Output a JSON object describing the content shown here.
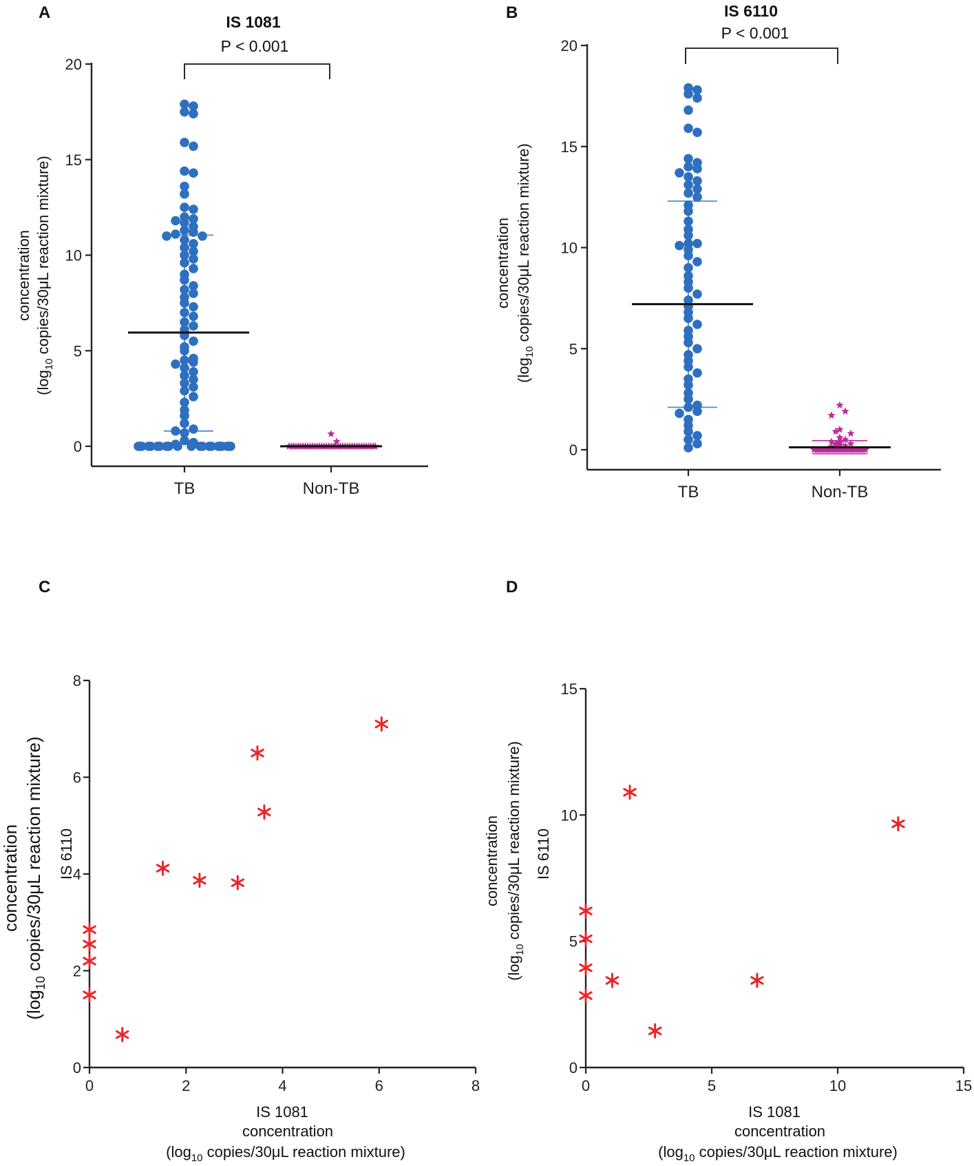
{
  "panels": {
    "A": {
      "letter": "A",
      "title": "IS 1081",
      "pvalue": "P < 0.001",
      "ylabel_line1": "concentration",
      "ylabel_line2_pre": "(log",
      "ylabel_line2_sub": "10",
      "ylabel_line2_post": " copies/30μL reaction mixture)"
    },
    "B": {
      "letter": "B",
      "title": "IS 6110",
      "pvalue": "P < 0.001",
      "ylabel_line1": "concentration",
      "ylabel_line2_pre": "(log",
      "ylabel_line2_sub": "10",
      "ylabel_line2_post": " copies/30μL reaction mixture)"
    },
    "C": {
      "letter": "C",
      "ylabel_top": "IS 6110",
      "ylabel_line1": "concentration",
      "ylabel_line2_pre": "(log",
      "ylabel_line2_sub": "10",
      "ylabel_line2_post": " copies/30μL reaction mixture)",
      "xlabel_line1": "IS 1081",
      "xlabel_line2": "concentration",
      "xlabel_line3_pre": "(log",
      "xlabel_line3_sub": "10",
      "xlabel_line3_post": " copies/30μL reaction mixture)"
    },
    "D": {
      "letter": "D",
      "ylabel_top": "IS 6110",
      "ylabel_line1": "concentration",
      "ylabel_line2_pre": "(log",
      "ylabel_line2_sub": "10",
      "ylabel_line2_post": " copies/30μL reaction mixture)",
      "xlabel_line1": "IS 1081",
      "xlabel_line2": "concentration",
      "xlabel_line3_pre": "(log",
      "xlabel_line3_sub": "10",
      "xlabel_line3_post": " copies/30μL reaction mixture)"
    }
  },
  "colors": {
    "tb": "#2f6fbf",
    "non_tb": "#c0279a",
    "scatter": "#e8262a",
    "sd_blue": "#4a8ed0",
    "mean": "#111111"
  },
  "chart_data": [
    {
      "panel": "A",
      "type": "scatter",
      "title": "IS 1081",
      "annotation": "P < 0.001",
      "categories": [
        "TB",
        "Non-TB"
      ],
      "ylim": [
        0,
        20
      ],
      "yticks": [
        0,
        5,
        10,
        15,
        20
      ],
      "series": [
        {
          "name": "TB",
          "mean": 5.95,
          "sd_low": 0.8,
          "sd_high": 11.05,
          "values": [
            17.9,
            17.8,
            17.5,
            17.4,
            15.9,
            15.7,
            14.4,
            14.3,
            13.6,
            13.2,
            12.5,
            12.4,
            12.0,
            11.9,
            11.8,
            11.7,
            11.5,
            11.3,
            11.2,
            11.1,
            11.0,
            11.0,
            10.8,
            10.6,
            10.4,
            10.2,
            10.0,
            9.8,
            9.6,
            9.3,
            9.0,
            8.7,
            8.4,
            8.2,
            8.0,
            7.8,
            7.5,
            7.3,
            7.0,
            6.8,
            6.5,
            6.3,
            6.1,
            5.8,
            5.5,
            5.2,
            5.0,
            4.6,
            4.5,
            4.4,
            4.3,
            4.1,
            3.9,
            3.7,
            3.5,
            3.3,
            3.1,
            2.9,
            2.6,
            2.3,
            1.9,
            1.6,
            1.2,
            0.9,
            0.8,
            0.7,
            0.3,
            0.2,
            0.1,
            0,
            0,
            0,
            0,
            0,
            0,
            0,
            0,
            0,
            0,
            0,
            0,
            0,
            0,
            0,
            0,
            0,
            0,
            0,
            0,
            0
          ]
        },
        {
          "name": "Non-TB",
          "mean": 0.0,
          "values": [
            0.65,
            0.25,
            0,
            0,
            0,
            0,
            0,
            0,
            0,
            0,
            0,
            0,
            0,
            0,
            0,
            0,
            0,
            0,
            0,
            0,
            0,
            0,
            0,
            0,
            0,
            0,
            0,
            0,
            0,
            0,
            0,
            0,
            0,
            0,
            0,
            0,
            0,
            0,
            0,
            0
          ]
        }
      ]
    },
    {
      "panel": "B",
      "type": "scatter",
      "title": "IS 6110",
      "annotation": "P < 0.001",
      "categories": [
        "TB",
        "Non-TB"
      ],
      "ylim": [
        0,
        20
      ],
      "yticks": [
        0,
        5,
        10,
        15,
        20
      ],
      "series": [
        {
          "name": "TB",
          "mean": 7.2,
          "sd_low": 2.1,
          "sd_high": 12.3,
          "values": [
            17.9,
            17.8,
            17.6,
            17.4,
            16.8,
            15.9,
            15.7,
            14.4,
            14.2,
            14.0,
            13.9,
            13.7,
            13.5,
            13.3,
            13.1,
            12.9,
            12.7,
            12.5,
            12.1,
            11.8,
            11.3,
            10.9,
            10.6,
            10.2,
            10.2,
            10.1,
            9.9,
            9.6,
            9.3,
            9.0,
            8.6,
            8.3,
            8.0,
            7.7,
            7.4,
            7.1,
            6.8,
            6.5,
            6.2,
            5.9,
            5.6,
            5.3,
            5.0,
            4.7,
            4.4,
            4.1,
            3.8,
            3.5,
            3.2,
            2.8,
            2.5,
            2.2,
            2.1,
            1.9,
            1.8,
            1.5,
            1.2,
            0.9,
            0.7,
            0.5,
            0.3,
            0.1
          ]
        },
        {
          "name": "Non-TB",
          "mean": 0.12,
          "sd_low": -0.2,
          "sd_high": 0.45,
          "values": [
            2.2,
            1.9,
            1.7,
            1.0,
            0.9,
            0.8,
            0.6,
            0.5,
            0.4,
            0.35,
            0.3,
            0.3,
            0.25,
            0.2,
            0.15,
            0.1,
            0.05,
            0,
            0,
            0,
            0,
            0,
            0,
            0,
            0,
            0,
            0,
            0,
            0,
            0,
            0,
            0,
            0,
            0,
            0,
            0,
            0,
            0,
            0,
            0
          ]
        }
      ]
    },
    {
      "panel": "C",
      "type": "scatter",
      "xlabel": "IS 1081 concentration (log10 copies/30μL reaction mixture)",
      "ylabel": "IS 6110 concentration (log10 copies/30μL reaction mixture)",
      "xlim": [
        0,
        8
      ],
      "ylim": [
        0,
        8
      ],
      "xticks": [
        0,
        2,
        4,
        6,
        8
      ],
      "yticks": [
        0,
        2,
        4,
        6,
        8
      ],
      "points": [
        {
          "x": 0,
          "y": 2.85
        },
        {
          "x": 0,
          "y": 2.55
        },
        {
          "x": 0,
          "y": 2.2
        },
        {
          "x": 0,
          "y": 1.5
        },
        {
          "x": 0.68,
          "y": 0.68
        },
        {
          "x": 1.52,
          "y": 4.12
        },
        {
          "x": 2.28,
          "y": 3.87
        },
        {
          "x": 3.07,
          "y": 3.82
        },
        {
          "x": 3.48,
          "y": 6.5
        },
        {
          "x": 3.62,
          "y": 5.28
        },
        {
          "x": 6.05,
          "y": 7.1
        }
      ]
    },
    {
      "panel": "D",
      "type": "scatter",
      "xlabel": "IS 1081 concentration (log10 copies/30μL reaction mixture)",
      "ylabel": "IS 6110 concentration (log10 copies/30μL reaction mixture)",
      "xlim": [
        0,
        15
      ],
      "ylim": [
        0,
        15
      ],
      "xticks": [
        0,
        5,
        10,
        15
      ],
      "yticks": [
        0,
        5,
        10,
        15
      ],
      "points": [
        {
          "x": 0,
          "y": 6.2
        },
        {
          "x": 0,
          "y": 5.1
        },
        {
          "x": 0,
          "y": 3.95
        },
        {
          "x": 0,
          "y": 2.85
        },
        {
          "x": 1.05,
          "y": 3.45
        },
        {
          "x": 1.75,
          "y": 10.9
        },
        {
          "x": 2.75,
          "y": 1.45
        },
        {
          "x": 6.8,
          "y": 3.45
        },
        {
          "x": 12.4,
          "y": 9.65
        }
      ]
    }
  ]
}
